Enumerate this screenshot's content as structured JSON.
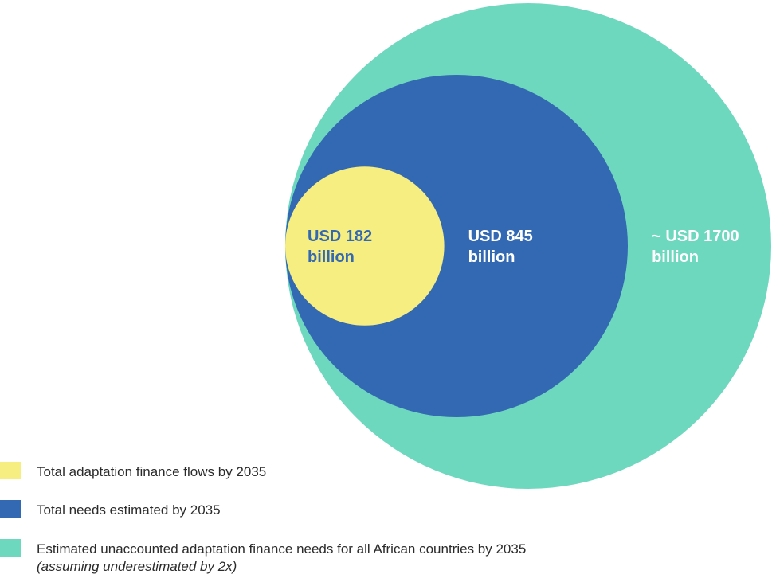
{
  "chart_data": {
    "type": "nested-bubble",
    "title": "",
    "items": [
      {
        "value": 1700,
        "label_lines": [
          "~ USD 1700",
          "billion"
        ],
        "color": "#6ed8bf",
        "label_color": "#ffffff",
        "legend": "Estimated unaccounted adaptation finance needs for all African countries by 2035",
        "legend_note": "(assuming underestimated by 2x)"
      },
      {
        "value": 845,
        "label_lines": [
          "USD 845",
          "billion"
        ],
        "color": "#3368b3",
        "label_color": "#ffffff",
        "legend": "Total needs estimated by 2035",
        "legend_note": ""
      },
      {
        "value": 182,
        "label_lines": [
          "USD 182",
          "billion"
        ],
        "color": "#f7ee82",
        "label_color": "#3368b3",
        "legend": "Total adaptation finance flows by 2035",
        "legend_note": ""
      }
    ],
    "legend_order": [
      2,
      1,
      0
    ]
  }
}
